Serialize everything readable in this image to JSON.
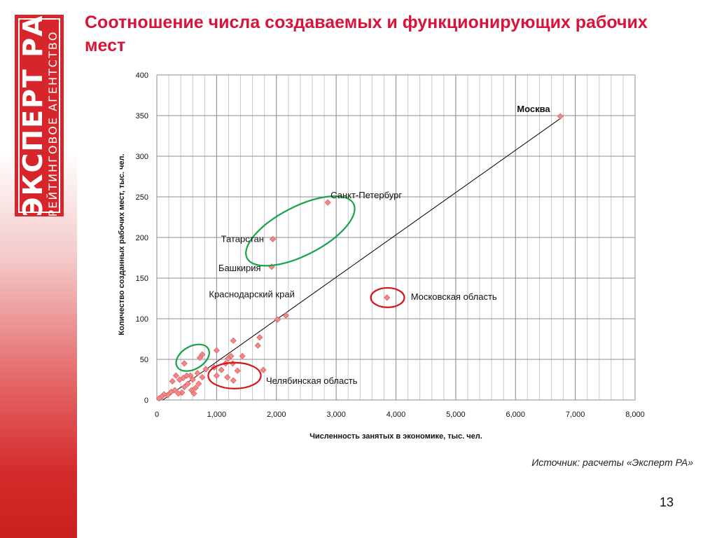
{
  "slide": {
    "title": "Соотношение числа создаваемых и функционирующих рабочих мест",
    "source": "Источник: расчеты «Эксперт РА»",
    "page_number": "13",
    "logo": {
      "main": "ЭКСПЕРТ РА",
      "sub": "РЕЙТИНГОВОЕ АГЕНТСТВО"
    }
  },
  "colors": {
    "title": "#d8143a",
    "logo": "#d7262b",
    "marker": "#f08a8a",
    "highlight_green": "#1aa34a",
    "highlight_red": "#d7141a",
    "trend_line": "#000000"
  },
  "chart_data": {
    "type": "scatter",
    "xlabel": "Численность занятых в экономике, тыс. чел.",
    "ylabel": "Количество созданных рабочих мест, тыс. чел.",
    "xlim": [
      0,
      8000
    ],
    "ylim": [
      0,
      400
    ],
    "x_ticks": [
      0,
      1000,
      2000,
      3000,
      4000,
      5000,
      6000,
      7000,
      8000
    ],
    "x_tick_labels": [
      "0",
      "1,000",
      "2,000",
      "3,000",
      "4,000",
      "5,000",
      "6,000",
      "7,000",
      "8,000"
    ],
    "y_ticks": [
      0,
      50,
      100,
      150,
      200,
      250,
      300,
      350,
      400
    ],
    "y_tick_labels": [
      "0",
      "50",
      "100",
      "150",
      "200",
      "250",
      "300",
      "350",
      "400"
    ],
    "grid": true,
    "series": [
      {
        "points": [
          [
            6750,
            349
          ],
          [
            2860,
            243
          ],
          [
            1940,
            198
          ],
          [
            1920,
            164
          ],
          [
            3850,
            126
          ],
          [
            2160,
            104
          ],
          [
            2020,
            99
          ],
          [
            1280,
            73
          ],
          [
            1720,
            77
          ],
          [
            1690,
            67
          ],
          [
            1000,
            61
          ],
          [
            1780,
            37
          ],
          [
            1280,
            24
          ],
          [
            1350,
            36
          ],
          [
            1180,
            28
          ],
          [
            1430,
            54
          ],
          [
            1240,
            54
          ],
          [
            1190,
            51
          ],
          [
            1270,
            45
          ],
          [
            1150,
            45
          ],
          [
            1080,
            37
          ],
          [
            960,
            40
          ],
          [
            820,
            38
          ],
          [
            1000,
            30
          ],
          [
            760,
            56
          ],
          [
            720,
            52
          ],
          [
            460,
            45
          ],
          [
            680,
            33
          ],
          [
            600,
            25
          ],
          [
            560,
            30
          ],
          [
            500,
            30
          ],
          [
            440,
            27
          ],
          [
            380,
            25
          ],
          [
            320,
            30
          ],
          [
            260,
            23
          ],
          [
            520,
            20
          ],
          [
            580,
            12
          ],
          [
            650,
            15
          ],
          [
            700,
            20
          ],
          [
            760,
            28
          ],
          [
            420,
            9
          ],
          [
            360,
            8
          ],
          [
            300,
            12
          ],
          [
            240,
            10
          ],
          [
            180,
            6
          ],
          [
            120,
            7
          ],
          [
            80,
            4
          ],
          [
            40,
            2
          ],
          [
            620,
            8
          ],
          [
            460,
            16
          ]
        ]
      }
    ],
    "trend_line": {
      "from": [
        100,
        0
      ],
      "to": [
        6780,
        348
      ]
    },
    "annotations": [
      {
        "text": "Москва",
        "x": 6750,
        "y": 349,
        "bold": true
      },
      {
        "text": "Санкт-Петербург",
        "x": 2860,
        "y": 243
      },
      {
        "text": "Татарстан",
        "x": 1940,
        "y": 198
      },
      {
        "text": "Башкирия",
        "x": 1920,
        "y": 164
      },
      {
        "text": "Краснодарский край",
        "x": 2160,
        "y": 104
      },
      {
        "text": "Московская область",
        "x": 3850,
        "y": 126
      },
      {
        "text": "Челябинская область",
        "x": 1780,
        "y": 37
      }
    ],
    "highlights": [
      {
        "color": "green",
        "cx": 2400,
        "cy": 208,
        "rx": 1000,
        "ry": 30,
        "angle_deg": -27
      },
      {
        "color": "green",
        "cx": 600,
        "cy": 52,
        "rx": 300,
        "ry": 14,
        "angle_deg": -30
      },
      {
        "color": "red",
        "cx": 3860,
        "cy": 126,
        "rx": 280,
        "ry": 12,
        "angle_deg": 0
      },
      {
        "color": "red",
        "cx": 1300,
        "cy": 30,
        "rx": 440,
        "ry": 16,
        "angle_deg": 0
      }
    ]
  }
}
